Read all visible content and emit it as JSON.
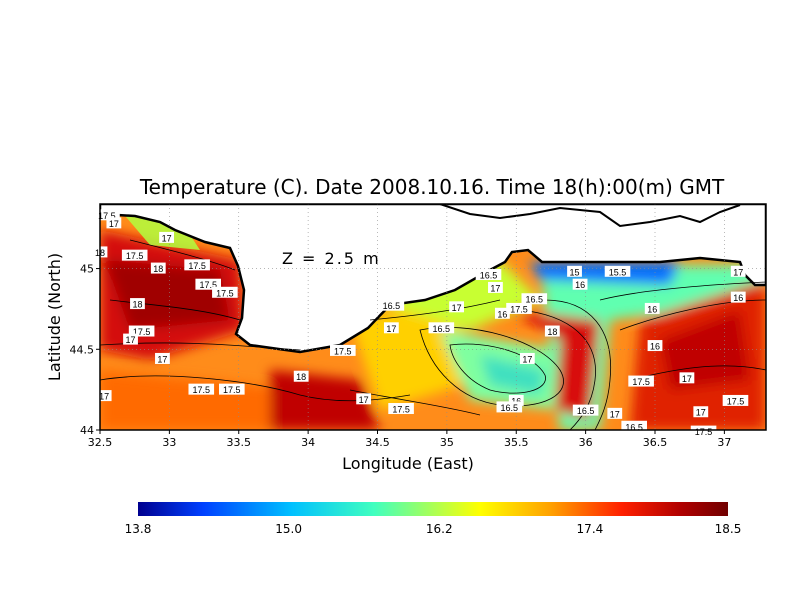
{
  "chart_data": {
    "type": "heatmap",
    "title": "Temperature (C). Date 2008.10.16. Time 18(h):00(m) GMT",
    "annotation": "Z = 2.5 m",
    "xlabel": "Longitude (East)",
    "ylabel": "Latitude (North)",
    "xlim": [
      32.5,
      37.3
    ],
    "ylim": [
      44.0,
      45.4
    ],
    "x_ticks": [
      "32.5",
      "33",
      "33.5",
      "34",
      "34.5",
      "35",
      "35.5",
      "36",
      "36.5",
      "37"
    ],
    "y_ticks": [
      "44",
      "44.5",
      "45"
    ],
    "grid": true,
    "colorbar": {
      "min": 13.8,
      "max": 18.5,
      "tick_labels": [
        "13.8",
        "15.0",
        "16.2",
        "17.4",
        "18.5"
      ],
      "colors": [
        "#00008f",
        "#0040ff",
        "#00c0ff",
        "#40ffbf",
        "#c0ff40",
        "#ffff00",
        "#ffa000",
        "#ff2000",
        "#b00000",
        "#700000"
      ]
    },
    "contour_labels": [
      {
        "lon": 32.55,
        "lat": 45.33,
        "text": "17.5"
      },
      {
        "lon": 32.6,
        "lat": 45.28,
        "text": "17"
      },
      {
        "lon": 32.98,
        "lat": 45.19,
        "text": "17"
      },
      {
        "lon": 32.5,
        "lat": 45.1,
        "text": "18"
      },
      {
        "lon": 32.75,
        "lat": 45.08,
        "text": "17.5"
      },
      {
        "lon": 32.92,
        "lat": 45.0,
        "text": "18"
      },
      {
        "lon": 33.2,
        "lat": 45.02,
        "text": "17.5"
      },
      {
        "lon": 33.28,
        "lat": 44.9,
        "text": "17.5"
      },
      {
        "lon": 33.4,
        "lat": 44.85,
        "text": "17.5"
      },
      {
        "lon": 32.77,
        "lat": 44.78,
        "text": "18"
      },
      {
        "lon": 32.8,
        "lat": 44.61,
        "text": "17.5"
      },
      {
        "lon": 32.72,
        "lat": 44.56,
        "text": "17"
      },
      {
        "lon": 32.95,
        "lat": 44.44,
        "text": "17"
      },
      {
        "lon": 33.23,
        "lat": 44.25,
        "text": "17.5"
      },
      {
        "lon": 33.45,
        "lat": 44.25,
        "text": "17.5"
      },
      {
        "lon": 32.53,
        "lat": 44.21,
        "text": "17"
      },
      {
        "lon": 33.95,
        "lat": 44.33,
        "text": "18"
      },
      {
        "lon": 34.25,
        "lat": 44.49,
        "text": "17.5"
      },
      {
        "lon": 34.6,
        "lat": 44.77,
        "text": "16.5"
      },
      {
        "lon": 34.6,
        "lat": 44.63,
        "text": "17"
      },
      {
        "lon": 34.96,
        "lat": 44.63,
        "text": "16.5"
      },
      {
        "lon": 35.3,
        "lat": 44.96,
        "text": "16.5"
      },
      {
        "lon": 35.35,
        "lat": 44.88,
        "text": "17"
      },
      {
        "lon": 35.07,
        "lat": 44.76,
        "text": "17"
      },
      {
        "lon": 35.4,
        "lat": 44.72,
        "text": "16"
      },
      {
        "lon": 35.52,
        "lat": 44.75,
        "text": "17.5"
      },
      {
        "lon": 35.63,
        "lat": 44.81,
        "text": "16.5"
      },
      {
        "lon": 35.92,
        "lat": 44.98,
        "text": "15"
      },
      {
        "lon": 35.96,
        "lat": 44.9,
        "text": "16"
      },
      {
        "lon": 36.23,
        "lat": 44.98,
        "text": "15.5"
      },
      {
        "lon": 35.76,
        "lat": 44.61,
        "text": "18"
      },
      {
        "lon": 35.58,
        "lat": 44.44,
        "text": "17"
      },
      {
        "lon": 36.48,
        "lat": 44.75,
        "text": "16"
      },
      {
        "lon": 36.5,
        "lat": 44.52,
        "text": "16"
      },
      {
        "lon": 37.1,
        "lat": 44.98,
        "text": "17"
      },
      {
        "lon": 37.1,
        "lat": 44.82,
        "text": "16"
      },
      {
        "lon": 36.4,
        "lat": 44.3,
        "text": "17.5"
      },
      {
        "lon": 36.73,
        "lat": 44.32,
        "text": "17"
      },
      {
        "lon": 36.83,
        "lat": 44.11,
        "text": "17"
      },
      {
        "lon": 37.08,
        "lat": 44.18,
        "text": "17.5"
      },
      {
        "lon": 34.4,
        "lat": 44.19,
        "text": "17"
      },
      {
        "lon": 34.67,
        "lat": 44.13,
        "text": "17.5"
      },
      {
        "lon": 35.5,
        "lat": 44.18,
        "text": "16"
      },
      {
        "lon": 35.45,
        "lat": 44.14,
        "text": "16.5"
      },
      {
        "lon": 36.0,
        "lat": 44.12,
        "text": "16.5"
      },
      {
        "lon": 36.21,
        "lat": 44.1,
        "text": "17"
      },
      {
        "lon": 36.35,
        "lat": 44.02,
        "text": "16.5"
      },
      {
        "lon": 36.85,
        "lat": 43.99,
        "text": "17.5"
      }
    ]
  }
}
